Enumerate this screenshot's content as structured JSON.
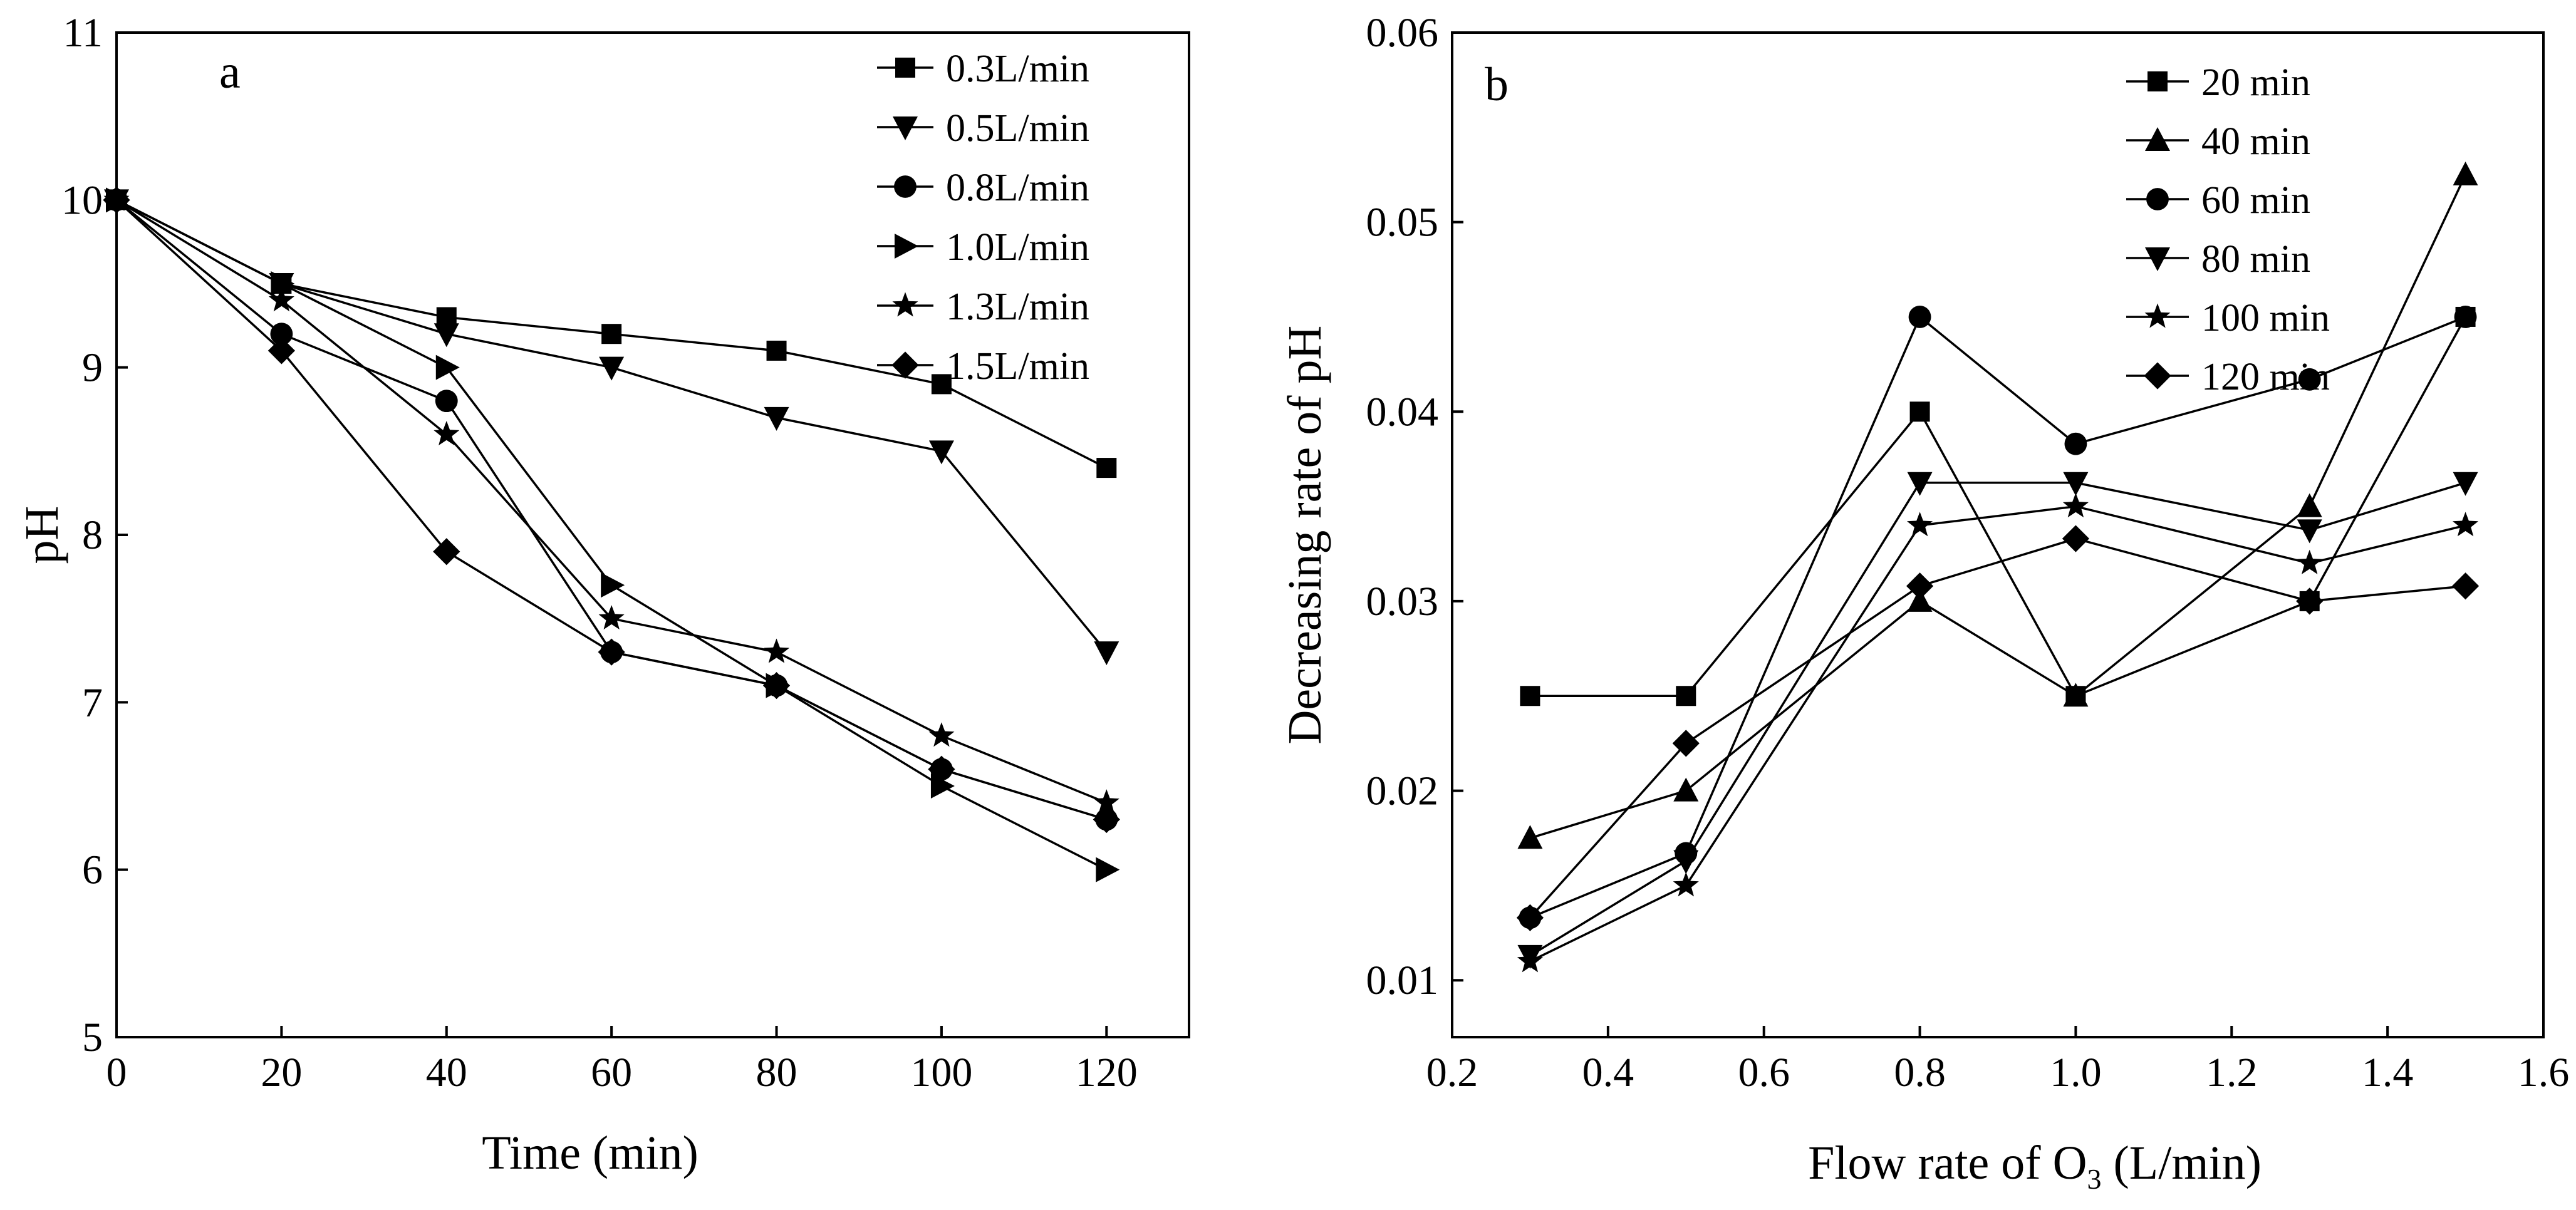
{
  "chart_data": [
    {
      "type": "line",
      "panel_label": "a",
      "xlabel": "Time (min)",
      "ylabel": "pH",
      "xlim": [
        0,
        130
      ],
      "ylim": [
        5,
        11
      ],
      "xticks": [
        0,
        20,
        40,
        60,
        80,
        100,
        120
      ],
      "yticks": [
        5,
        6,
        7,
        8,
        9,
        10,
        11
      ],
      "legend_position": "top-right",
      "x": [
        0,
        20,
        40,
        60,
        80,
        100,
        120
      ],
      "series": [
        {
          "name": "0.3L/min",
          "marker": "square",
          "values": [
            10,
            9.5,
            9.3,
            9.2,
            9.1,
            8.9,
            8.4
          ]
        },
        {
          "name": "0.5L/min",
          "marker": "triangle-down",
          "values": [
            10,
            9.5,
            9.2,
            9.0,
            8.7,
            8.5,
            7.3
          ]
        },
        {
          "name": "0.8L/min",
          "marker": "circle",
          "values": [
            10,
            9.2,
            8.8,
            7.3,
            7.1,
            6.6,
            6.3
          ]
        },
        {
          "name": "1.0L/min",
          "marker": "triangle-right",
          "values": [
            10,
            9.5,
            9.0,
            7.7,
            7.1,
            6.5,
            6.0
          ]
        },
        {
          "name": "1.3L/min",
          "marker": "star",
          "values": [
            10,
            9.4,
            8.6,
            7.5,
            7.3,
            6.8,
            6.4
          ]
        },
        {
          "name": "1.5L/min",
          "marker": "diamond",
          "values": [
            10,
            9.1,
            7.9,
            7.3,
            7.1,
            6.6,
            6.3
          ]
        }
      ]
    },
    {
      "type": "line",
      "panel_label": "b",
      "xlabel_main": "Flow rate of O",
      "xlabel_sub": "3",
      "xlabel_tail": " (L/min)",
      "ylabel": "Decreasing rate of pH",
      "xlim": [
        0.2,
        1.6
      ],
      "ylim": [
        0.007,
        0.06
      ],
      "xticks": [
        "0.2",
        "0.4",
        "0.6",
        "0.8",
        "1.0",
        "1.2",
        "1.4",
        "1.6"
      ],
      "yticks": [
        "0.01",
        "0.02",
        "0.03",
        "0.04",
        "0.05",
        "0.06"
      ],
      "legend_position": "top-right",
      "x": [
        0.3,
        0.5,
        0.8,
        1.0,
        1.3,
        1.5
      ],
      "series": [
        {
          "name": "20 min",
          "marker": "square",
          "values": [
            0.025,
            0.025,
            0.04,
            0.025,
            0.03,
            0.045
          ]
        },
        {
          "name": "40 min",
          "marker": "triangle-up",
          "values": [
            0.0175,
            0.02,
            0.03,
            0.025,
            0.035,
            0.0525
          ]
        },
        {
          "name": "60 min",
          "marker": "circle",
          "values": [
            0.0133,
            0.0167,
            0.045,
            0.0383,
            0.0417,
            0.045
          ]
        },
        {
          "name": "80 min",
          "marker": "triangle-down",
          "values": [
            0.0113,
            0.0163,
            0.03625,
            0.03625,
            0.03375,
            0.03625
          ]
        },
        {
          "name": "100 min",
          "marker": "star",
          "values": [
            0.011,
            0.015,
            0.034,
            0.035,
            0.032,
            0.034
          ]
        },
        {
          "name": "120 min",
          "marker": "diamond",
          "values": [
            0.0133,
            0.0225,
            0.0308,
            0.0333,
            0.03,
            0.0308
          ]
        }
      ]
    }
  ]
}
